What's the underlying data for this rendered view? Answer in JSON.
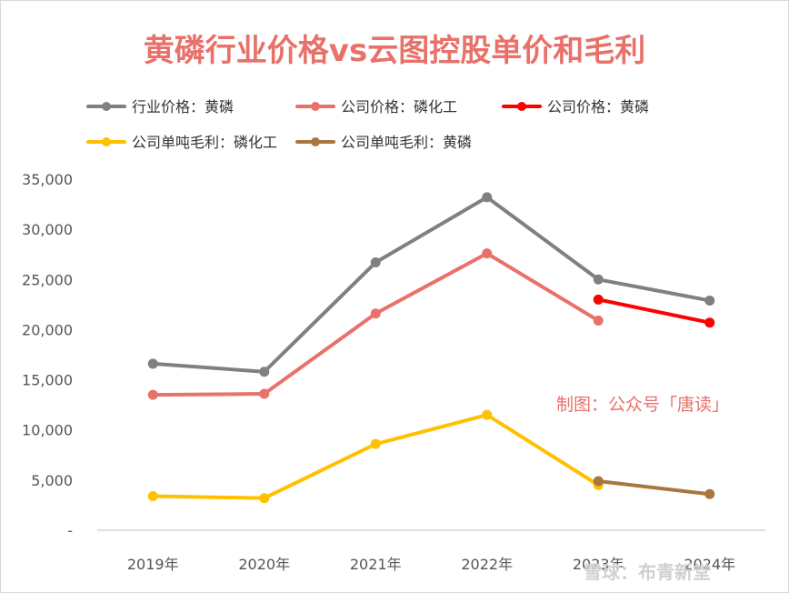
{
  "chart_data": {
    "type": "line",
    "title": "黄磷行业价格vs云图控股单价和毛利",
    "xlabel": "",
    "ylabel": "",
    "categories": [
      "2019年",
      "2020年",
      "2021年",
      "2022年",
      "2023年",
      "2024年"
    ],
    "ylim": [
      0,
      35000
    ],
    "yticks": [
      {
        "value": 0,
        "label": "-"
      },
      {
        "value": 5000,
        "label": "5,000"
      },
      {
        "value": 10000,
        "label": "10,000"
      },
      {
        "value": 15000,
        "label": "15,000"
      },
      {
        "value": 20000,
        "label": "20,000"
      },
      {
        "value": 25000,
        "label": "25,000"
      },
      {
        "value": 30000,
        "label": "30,000"
      },
      {
        "value": 35000,
        "label": "35,000"
      }
    ],
    "grid": false,
    "legend_position": "top",
    "series": [
      {
        "name": "行业价格：黄磷",
        "color": "#808080",
        "values": [
          16600,
          15800,
          26700,
          33200,
          25000,
          22900
        ]
      },
      {
        "name": "公司价格：磷化工",
        "color": "#e8716a",
        "values": [
          13500,
          13600,
          21600,
          27600,
          20900,
          null
        ]
      },
      {
        "name": "公司价格：黄磷",
        "color": "#ff0000",
        "values": [
          null,
          null,
          null,
          null,
          23000,
          20700
        ]
      },
      {
        "name": "公司单吨毛利：磷化工",
        "color": "#ffc000",
        "values": [
          3400,
          3200,
          8600,
          11500,
          4500,
          null
        ]
      },
      {
        "name": "公司单吨毛利：黄磷",
        "color": "#a9773e",
        "values": [
          null,
          null,
          null,
          null,
          4900,
          3600
        ]
      }
    ],
    "annotation": "制图：公众号「唐读」"
  },
  "watermark": "雪球：布青新堂"
}
